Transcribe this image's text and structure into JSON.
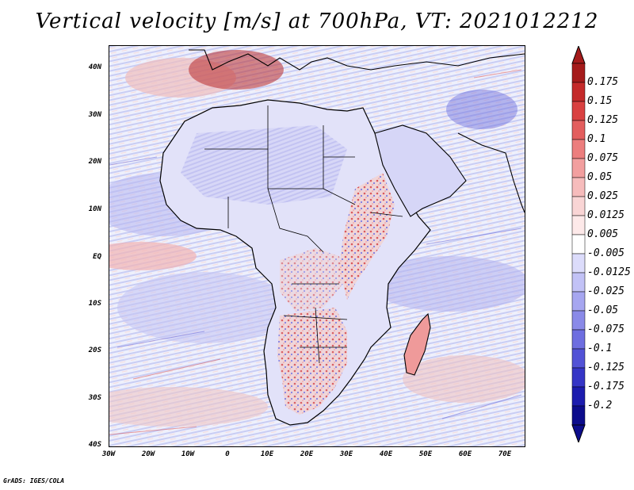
{
  "title": "Vertical velocity [m/s] at 700hPa, VT: 2021012212",
  "credit": "GrADS: IGES/COLA",
  "lat_labels": [
    "40N",
    "30N",
    "20N",
    "10N",
    "EQ",
    "10S",
    "20S",
    "30S",
    "40S"
  ],
  "lon_labels": [
    "30W",
    "20W",
    "10W",
    "0",
    "10E",
    "20E",
    "30E",
    "40E",
    "50E",
    "60E",
    "70E"
  ],
  "colorbar": {
    "labels": [
      "0.175",
      "0.15",
      "0.125",
      "0.1",
      "0.075",
      "0.05",
      "0.025",
      "0.0125",
      "0.005",
      "-0.005",
      "-0.0125",
      "-0.025",
      "-0.05",
      "-0.075",
      "-0.1",
      "-0.125",
      "-0.175",
      "-0.2"
    ],
    "colors": [
      "#a51b1b",
      "#c42a2a",
      "#d94141",
      "#e35e5e",
      "#ec7e7e",
      "#f29f9f",
      "#f6bcbc",
      "#f9d5d5",
      "#fde9e9",
      "#ffffff",
      "#dcdcfb",
      "#c2c2f6",
      "#a6a6f0",
      "#8a8ae8",
      "#6e6ee0",
      "#5252d6",
      "#3535c6",
      "#1c1cae",
      "#0c0c8c"
    ]
  },
  "map": {
    "region": "Africa",
    "lon_range": [
      -30,
      75
    ],
    "lat_range": [
      -40,
      45
    ],
    "variable": "Vertical velocity at 700hPa"
  }
}
